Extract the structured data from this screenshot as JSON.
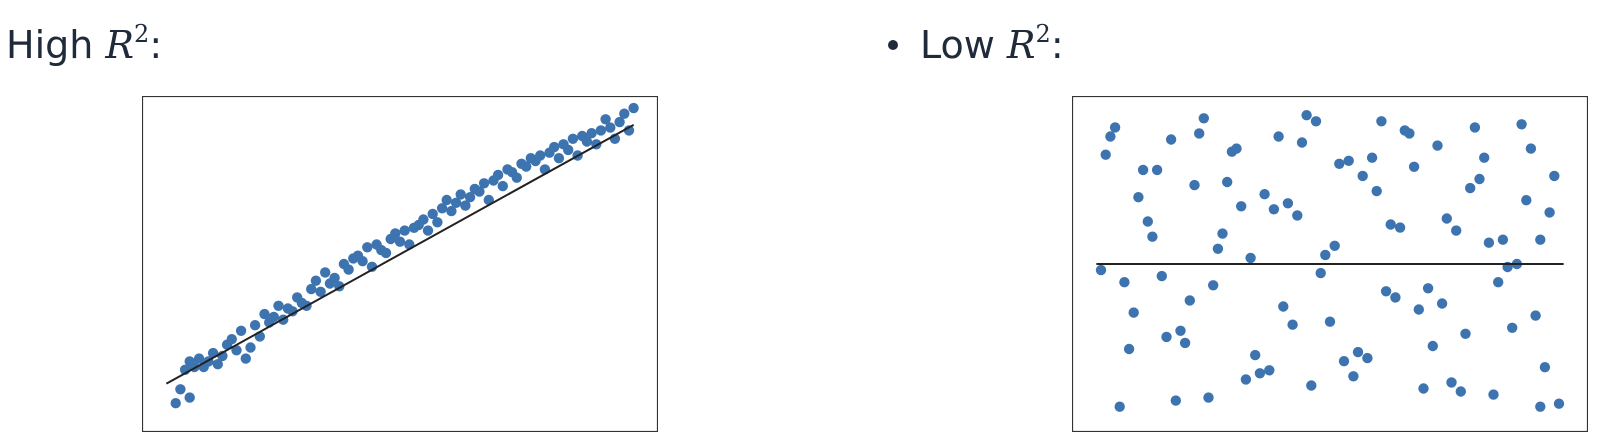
{
  "headings": {
    "left": {
      "prefix": "High ",
      "symbol": "R",
      "exponent": "2",
      "suffix": ":"
    },
    "right": {
      "prefix": "Low ",
      "symbol": "R",
      "exponent": "2",
      "suffix": ":"
    }
  },
  "colors": {
    "marker": "#3d74b0",
    "line": "#222222",
    "frame": "#333333"
  },
  "chart_data": [
    {
      "type": "scatter",
      "title": "",
      "xlabel": "",
      "ylabel": "",
      "xlim": [
        -0.05,
        1.05
      ],
      "ylim": [
        -0.1,
        1.1
      ],
      "grid": false,
      "ticks_visible": false,
      "fit_line": {
        "x": [
          0,
          1
        ],
        "y": [
          0.07,
          1.0
        ]
      },
      "x": [
        0.02,
        0.03,
        0.04,
        0.05,
        0.05,
        0.06,
        0.07,
        0.08,
        0.09,
        0.1,
        0.11,
        0.12,
        0.13,
        0.14,
        0.15,
        0.16,
        0.17,
        0.18,
        0.19,
        0.2,
        0.21,
        0.22,
        0.23,
        0.24,
        0.25,
        0.26,
        0.27,
        0.28,
        0.29,
        0.3,
        0.31,
        0.32,
        0.33,
        0.34,
        0.35,
        0.36,
        0.37,
        0.38,
        0.39,
        0.4,
        0.41,
        0.42,
        0.43,
        0.44,
        0.45,
        0.46,
        0.47,
        0.48,
        0.49,
        0.5,
        0.51,
        0.52,
        0.53,
        0.54,
        0.55,
        0.56,
        0.57,
        0.58,
        0.59,
        0.6,
        0.61,
        0.62,
        0.63,
        0.64,
        0.65,
        0.66,
        0.67,
        0.68,
        0.69,
        0.7,
        0.71,
        0.72,
        0.73,
        0.74,
        0.75,
        0.76,
        0.77,
        0.78,
        0.79,
        0.8,
        0.81,
        0.82,
        0.83,
        0.84,
        0.85,
        0.86,
        0.87,
        0.88,
        0.89,
        0.9,
        0.91,
        0.92,
        0.93,
        0.94,
        0.95,
        0.96,
        0.97,
        0.98,
        0.99,
        1.0
      ],
      "y": [
        0.0,
        0.05,
        0.12,
        0.02,
        0.15,
        0.13,
        0.16,
        0.13,
        0.15,
        0.18,
        0.14,
        0.17,
        0.21,
        0.23,
        0.19,
        0.26,
        0.16,
        0.2,
        0.28,
        0.24,
        0.32,
        0.29,
        0.31,
        0.35,
        0.3,
        0.34,
        0.33,
        0.38,
        0.36,
        0.35,
        0.41,
        0.44,
        0.4,
        0.47,
        0.43,
        0.45,
        0.42,
        0.5,
        0.48,
        0.52,
        0.53,
        0.51,
        0.56,
        0.49,
        0.57,
        0.55,
        0.54,
        0.59,
        0.61,
        0.58,
        0.62,
        0.57,
        0.63,
        0.64,
        0.66,
        0.62,
        0.68,
        0.65,
        0.7,
        0.73,
        0.69,
        0.72,
        0.75,
        0.71,
        0.74,
        0.77,
        0.76,
        0.79,
        0.73,
        0.8,
        0.82,
        0.78,
        0.84,
        0.83,
        0.81,
        0.86,
        0.85,
        0.88,
        0.87,
        0.89,
        0.84,
        0.9,
        0.92,
        0.88,
        0.93,
        0.91,
        0.95,
        0.89,
        0.96,
        0.94,
        0.97,
        0.93,
        0.98,
        1.02,
        0.99,
        0.95,
        1.01,
        1.04,
        0.98,
        1.06
      ]
    },
    {
      "type": "scatter",
      "title": "",
      "xlabel": "",
      "ylabel": "",
      "xlim": [
        -0.05,
        1.05
      ],
      "ylim": [
        -0.05,
        1.05
      ],
      "grid": false,
      "ticks_visible": false,
      "fit_line": {
        "x": [
          0,
          1
        ],
        "y": [
          0.5,
          0.5
        ]
      },
      "x": [
        0.04,
        0.09,
        0.13,
        0.18,
        0.22,
        0.26,
        0.3,
        0.35,
        0.39,
        0.43,
        0.48,
        0.52,
        0.56,
        0.61,
        0.65,
        0.69,
        0.73,
        0.78,
        0.82,
        0.86,
        0.91,
        0.95,
        0.99,
        0.02,
        0.07,
        0.11,
        0.16,
        0.2,
        0.24,
        0.28,
        0.33,
        0.37,
        0.41,
        0.45,
        0.5,
        0.54,
        0.58,
        0.63,
        0.67,
        0.71,
        0.76,
        0.8,
        0.84,
        0.89,
        0.93,
        0.97,
        0.05,
        0.1,
        0.14,
        0.19,
        0.23,
        0.27,
        0.32,
        0.36,
        0.4,
        0.44,
        0.49,
        0.53,
        0.57,
        0.62,
        0.66,
        0.7,
        0.75,
        0.79,
        0.83,
        0.88,
        0.92,
        0.96,
        0.03,
        0.08,
        0.12,
        0.17,
        0.21,
        0.25,
        0.29,
        0.34,
        0.38,
        0.42,
        0.47,
        0.51,
        0.55,
        0.6,
        0.64,
        0.68,
        0.72,
        0.77,
        0.81,
        0.85,
        0.9,
        0.94,
        0.98,
        0.06,
        0.15,
        0.31,
        0.46,
        0.59,
        0.74,
        0.87,
        0.01,
        0.95
      ],
      "y": [
        0.95,
        0.72,
        0.81,
        0.28,
        0.93,
        0.55,
        0.88,
        0.14,
        0.92,
        0.66,
        0.47,
        0.83,
        0.21,
        0.97,
        0.62,
        0.35,
        0.89,
        0.08,
        0.78,
        0.44,
        0.96,
        0.58,
        0.04,
        0.86,
        0.22,
        0.64,
        0.91,
        0.38,
        0.06,
        0.77,
        0.52,
        0.15,
        0.7,
        0.99,
        0.31,
        0.84,
        0.19,
        0.63,
        0.93,
        0.42,
        0.11,
        0.75,
        0.57,
        0.29,
        0.88,
        0.67,
        0.03,
        0.81,
        0.46,
        0.24,
        0.98,
        0.6,
        0.12,
        0.73,
        0.36,
        0.9,
        0.53,
        0.18,
        0.79,
        0.41,
        0.94,
        0.09,
        0.65,
        0.27,
        0.85,
        0.49,
        0.71,
        0.16,
        0.92,
        0.34,
        0.59,
        0.05,
        0.76,
        0.43,
        0.87,
        0.2,
        0.68,
        0.3,
        0.97,
        0.56,
        0.13,
        0.74,
        0.39,
        0.82,
        0.23,
        0.61,
        0.95,
        0.07,
        0.5,
        0.33,
        0.79,
        0.44,
        0.26,
        0.69,
        0.1,
        0.85,
        0.37,
        0.58,
        0.48,
        0.03
      ]
    }
  ]
}
